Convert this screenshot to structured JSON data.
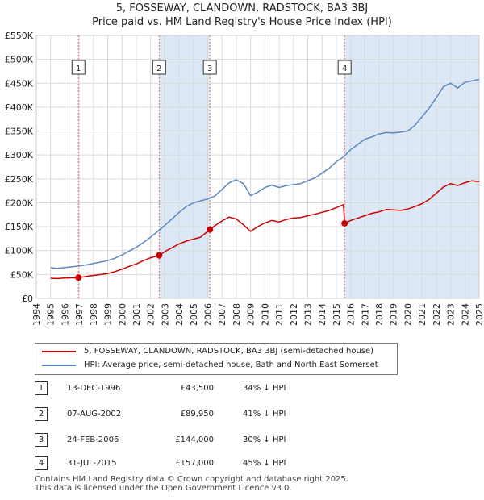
{
  "title_line1": "5, FOSSEWAY, CLANDOWN, RADSTOCK, BA3 3BJ",
  "title_line2": "Price paid vs. HM Land Registry's House Price Index (HPI)",
  "colors": {
    "property": "#cc0000",
    "hpi": "#5b88c0",
    "shade": "#dce8f6",
    "marker_line": "#e06666"
  },
  "chart_data": {
    "type": "line",
    "title": "5, FOSSEWAY, CLANDOWN, RADSTOCK, BA3 3BJ",
    "xlim": [
      1995,
      2025
    ],
    "ylim": [
      0,
      550000
    ],
    "y_ticks": [
      0,
      50000,
      100000,
      150000,
      200000,
      250000,
      300000,
      350000,
      400000,
      450000,
      500000,
      550000
    ],
    "y_tick_labels": [
      "£0",
      "£50K",
      "£100K",
      "£150K",
      "£200K",
      "£250K",
      "£300K",
      "£350K",
      "£400K",
      "£450K",
      "£500K",
      "£550K"
    ],
    "x_ticks": [
      1994,
      1995,
      1996,
      1997,
      1998,
      1999,
      2000,
      2001,
      2002,
      2003,
      2004,
      2005,
      2006,
      2007,
      2008,
      2009,
      2010,
      2011,
      2012,
      2013,
      2014,
      2015,
      2016,
      2017,
      2018,
      2019,
      2020,
      2021,
      2022,
      2023,
      2024,
      2025
    ],
    "x_tick_labels": [
      "1994",
      "1995",
      "1996",
      "1997",
      "1998",
      "1999",
      "2000",
      "2001",
      "2002",
      "2003",
      "2004",
      "2005",
      "2006",
      "2007",
      "2008",
      "2009",
      "2010",
      "2011",
      "2012",
      "2013",
      "2014",
      "2015",
      "2016",
      "2017",
      "2018",
      "2019",
      "2020",
      "2021",
      "2022",
      "2023",
      "2024",
      "2025"
    ],
    "series": [
      {
        "name": "5, FOSSEWAY, CLANDOWN, RADSTOCK, BA3 3BJ (semi-detached house)",
        "points": [
          [
            1995.0,
            42000
          ],
          [
            1995.5,
            41500
          ],
          [
            1996.0,
            42500
          ],
          [
            1996.5,
            43000
          ],
          [
            1996.95,
            43500
          ],
          [
            1997.5,
            46000
          ],
          [
            1998.0,
            48000
          ],
          [
            1998.5,
            50000
          ],
          [
            1999.0,
            52000
          ],
          [
            1999.5,
            56000
          ],
          [
            2000.0,
            61000
          ],
          [
            2000.5,
            67000
          ],
          [
            2001.0,
            72000
          ],
          [
            2001.5,
            79000
          ],
          [
            2002.0,
            85000
          ],
          [
            2002.6,
            89950
          ],
          [
            2003.0,
            98000
          ],
          [
            2003.5,
            106000
          ],
          [
            2004.0,
            114000
          ],
          [
            2004.5,
            120000
          ],
          [
            2005.0,
            124000
          ],
          [
            2005.5,
            128000
          ],
          [
            2006.15,
            144000
          ],
          [
            2006.5,
            152000
          ],
          [
            2007.0,
            162000
          ],
          [
            2007.5,
            170000
          ],
          [
            2008.0,
            166000
          ],
          [
            2008.5,
            154000
          ],
          [
            2009.0,
            140000
          ],
          [
            2009.5,
            150000
          ],
          [
            2010.0,
            158000
          ],
          [
            2010.5,
            163000
          ],
          [
            2011.0,
            160000
          ],
          [
            2011.5,
            165000
          ],
          [
            2012.0,
            168000
          ],
          [
            2012.5,
            169000
          ],
          [
            2013.0,
            173000
          ],
          [
            2013.5,
            176000
          ],
          [
            2014.0,
            180000
          ],
          [
            2014.5,
            184000
          ],
          [
            2015.0,
            190000
          ],
          [
            2015.5,
            196000
          ],
          [
            2015.58,
            157000
          ],
          [
            2016.0,
            163000
          ],
          [
            2016.5,
            168000
          ],
          [
            2017.0,
            173000
          ],
          [
            2017.5,
            178000
          ],
          [
            2018.0,
            181000
          ],
          [
            2018.5,
            186000
          ],
          [
            2019.0,
            185000
          ],
          [
            2019.5,
            184000
          ],
          [
            2020.0,
            187000
          ],
          [
            2020.5,
            192000
          ],
          [
            2021.0,
            198000
          ],
          [
            2021.5,
            207000
          ],
          [
            2022.0,
            220000
          ],
          [
            2022.5,
            233000
          ],
          [
            2023.0,
            240000
          ],
          [
            2023.5,
            236000
          ],
          [
            2024.0,
            242000
          ],
          [
            2024.5,
            246000
          ],
          [
            2025.0,
            244000
          ]
        ]
      },
      {
        "name": "HPI: Average price, semi-detached house, Bath and North East Somerset",
        "points": [
          [
            1995.0,
            64000
          ],
          [
            1995.5,
            63000
          ],
          [
            1996.0,
            64500
          ],
          [
            1996.5,
            66000
          ],
          [
            1997.0,
            68000
          ],
          [
            1997.5,
            70000
          ],
          [
            1998.0,
            73000
          ],
          [
            1998.5,
            76000
          ],
          [
            1999.0,
            79000
          ],
          [
            1999.5,
            84000
          ],
          [
            2000.0,
            91000
          ],
          [
            2000.5,
            99000
          ],
          [
            2001.0,
            107000
          ],
          [
            2001.5,
            117000
          ],
          [
            2002.0,
            128000
          ],
          [
            2002.5,
            140000
          ],
          [
            2003.0,
            153000
          ],
          [
            2003.5,
            166000
          ],
          [
            2004.0,
            180000
          ],
          [
            2004.5,
            192000
          ],
          [
            2005.0,
            200000
          ],
          [
            2005.5,
            204000
          ],
          [
            2006.0,
            208000
          ],
          [
            2006.5,
            214000
          ],
          [
            2007.0,
            228000
          ],
          [
            2007.5,
            242000
          ],
          [
            2008.0,
            248000
          ],
          [
            2008.5,
            240000
          ],
          [
            2009.0,
            215000
          ],
          [
            2009.5,
            222000
          ],
          [
            2010.0,
            232000
          ],
          [
            2010.5,
            237000
          ],
          [
            2011.0,
            232000
          ],
          [
            2011.5,
            236000
          ],
          [
            2012.0,
            238000
          ],
          [
            2012.5,
            240000
          ],
          [
            2013.0,
            246000
          ],
          [
            2013.5,
            252000
          ],
          [
            2014.0,
            262000
          ],
          [
            2014.5,
            272000
          ],
          [
            2015.0,
            286000
          ],
          [
            2015.5,
            296000
          ],
          [
            2016.0,
            311000
          ],
          [
            2016.5,
            322000
          ],
          [
            2017.0,
            333000
          ],
          [
            2017.5,
            338000
          ],
          [
            2018.0,
            344000
          ],
          [
            2018.5,
            347000
          ],
          [
            2019.0,
            346000
          ],
          [
            2019.5,
            348000
          ],
          [
            2020.0,
            350000
          ],
          [
            2020.5,
            362000
          ],
          [
            2021.0,
            380000
          ],
          [
            2021.5,
            398000
          ],
          [
            2022.0,
            420000
          ],
          [
            2022.5,
            443000
          ],
          [
            2023.0,
            450000
          ],
          [
            2023.5,
            440000
          ],
          [
            2024.0,
            452000
          ],
          [
            2024.5,
            455000
          ],
          [
            2025.0,
            458000
          ]
        ]
      }
    ],
    "sales": [
      {
        "id": "1",
        "x": 1996.95,
        "price": 43500
      },
      {
        "id": "2",
        "x": 2002.6,
        "price": 89950
      },
      {
        "id": "3",
        "x": 2006.15,
        "price": 144000
      },
      {
        "id": "4",
        "x": 2015.58,
        "price": 157000
      }
    ],
    "shaded_ranges": [
      [
        2002.6,
        2006.15
      ],
      [
        2015.58,
        2025.0
      ]
    ]
  },
  "legend": [
    {
      "label": "5, FOSSEWAY, CLANDOWN, RADSTOCK, BA3 3BJ (semi-detached house)"
    },
    {
      "label": "HPI: Average price, semi-detached house, Bath and North East Somerset"
    }
  ],
  "sales_table": [
    {
      "num": "1",
      "date": "13-DEC-1996",
      "price": "£43,500",
      "hpi": "34% ↓ HPI"
    },
    {
      "num": "2",
      "date": "07-AUG-2002",
      "price": "£89,950",
      "hpi": "41% ↓ HPI"
    },
    {
      "num": "3",
      "date": "24-FEB-2006",
      "price": "£144,000",
      "hpi": "30% ↓ HPI"
    },
    {
      "num": "4",
      "date": "31-JUL-2015",
      "price": "£157,000",
      "hpi": "45% ↓ HPI"
    }
  ],
  "footer_line1": "Contains HM Land Registry data © Crown copyright and database right 2025.",
  "footer_line2": "This data is licensed under the Open Government Licence v3.0."
}
